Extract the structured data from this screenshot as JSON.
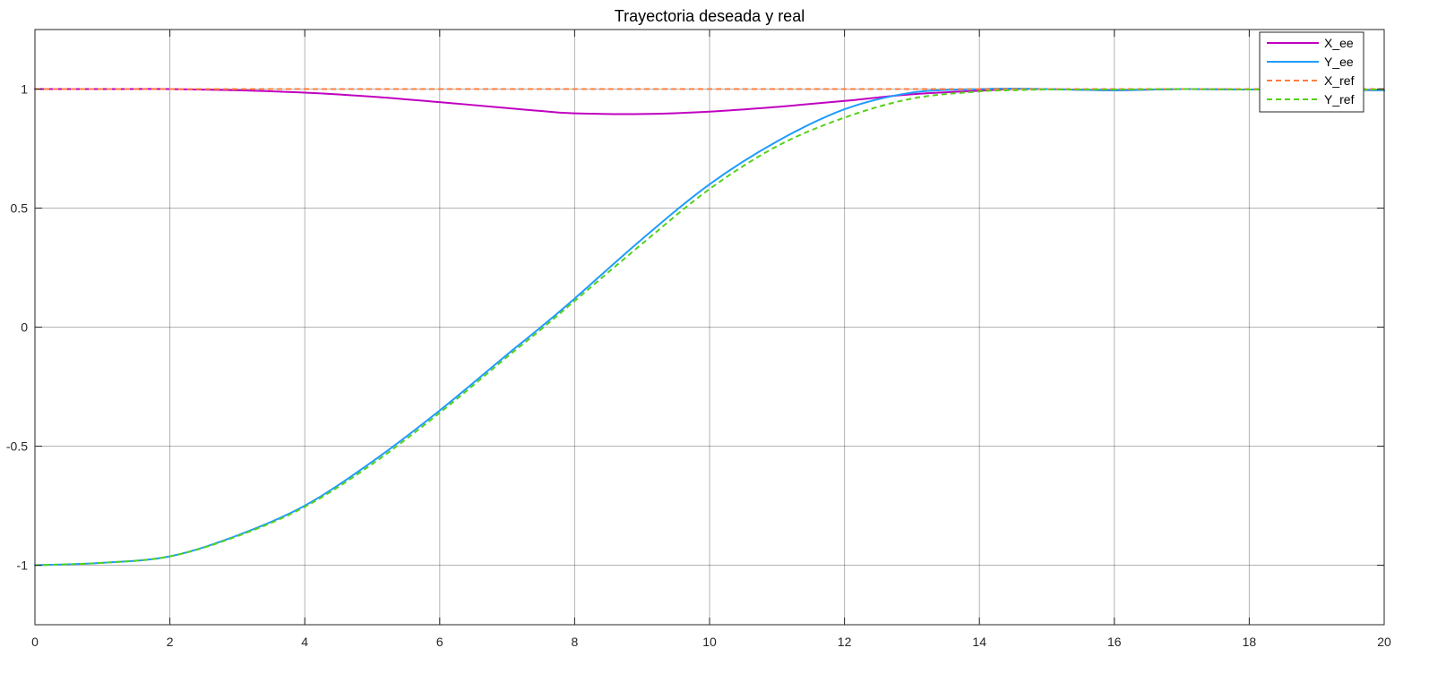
{
  "chart_data": {
    "type": "line",
    "title": "Trayectoria deseada y real",
    "xlabel": "",
    "ylabel": "",
    "xlim": [
      0,
      20
    ],
    "ylim": [
      -1.25,
      1.25
    ],
    "grid": true,
    "legend_position": "top-right",
    "x_ticks": [
      "0",
      "2",
      "4",
      "6",
      "8",
      "10",
      "12",
      "14",
      "16",
      "18",
      "20"
    ],
    "y_ticks": [
      "-1",
      "-0.5",
      "0",
      "0.5",
      "1"
    ],
    "x_tick_values": [
      0,
      2,
      4,
      6,
      8,
      10,
      12,
      14,
      16,
      18,
      20
    ],
    "y_tick_values": [
      -1,
      -0.5,
      0,
      0.5,
      1
    ],
    "x": [
      0,
      1,
      2,
      3,
      4,
      5,
      6,
      7,
      7.5,
      8,
      9,
      10,
      11,
      12,
      13,
      14,
      14.5,
      15,
      16,
      17,
      18,
      19,
      20
    ],
    "series": [
      {
        "name": "X_ee",
        "color": "#c000c0",
        "dash": "solid",
        "values": [
          1.0,
          1.0,
          1.0,
          0.995,
          0.985,
          0.968,
          0.945,
          0.92,
          0.908,
          0.898,
          0.895,
          0.905,
          0.925,
          0.95,
          0.978,
          0.993,
          1.0,
          1.0,
          0.995,
          1.0,
          0.998,
          0.998,
          0.995
        ]
      },
      {
        "name": "Y_ee",
        "color": "#1e9bff",
        "dash": "solid",
        "values": [
          -1.0,
          -0.99,
          -0.963,
          -0.875,
          -0.75,
          -0.565,
          -0.35,
          -0.115,
          0.0,
          0.12,
          0.37,
          0.6,
          0.78,
          0.915,
          0.985,
          1.0,
          1.002,
          1.0,
          0.995,
          1.0,
          0.998,
          0.998,
          0.995
        ]
      },
      {
        "name": "X_ref",
        "color": "#ff7f3f",
        "dash": "dashed",
        "values": [
          1.0,
          1.0,
          1.0,
          1.0,
          1.0,
          1.0,
          1.0,
          1.0,
          1.0,
          1.0,
          1.0,
          1.0,
          1.0,
          1.0,
          1.0,
          1.0,
          1.0,
          1.0,
          1.0,
          1.0,
          1.0,
          1.0,
          1.0
        ]
      },
      {
        "name": "Y_ref",
        "color": "#55d11a",
        "dash": "dashed",
        "values": [
          -1.0,
          -0.99,
          -0.963,
          -0.878,
          -0.755,
          -0.575,
          -0.36,
          -0.125,
          -0.01,
          0.11,
          0.35,
          0.58,
          0.76,
          0.88,
          0.96,
          0.99,
          0.995,
          0.998,
          0.998,
          1.0,
          0.998,
          0.998,
          0.998
        ]
      }
    ]
  }
}
